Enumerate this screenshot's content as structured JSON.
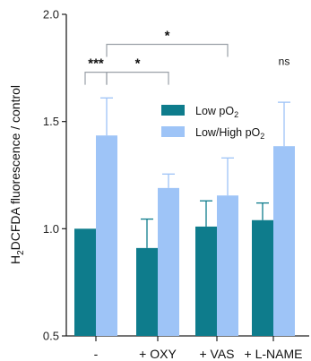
{
  "chart_data": {
    "type": "bar",
    "categories": [
      "-",
      "+ OXY",
      "+ VAS",
      "+ L-NAME"
    ],
    "series": [
      {
        "name": "Low pO",
        "name_sub": "2",
        "color": "#0e7c8c",
        "values": [
          1.0,
          0.91,
          1.01,
          1.04
        ],
        "errors": [
          0.0,
          0.135,
          0.12,
          0.08
        ]
      },
      {
        "name": "Low/High pO",
        "name_sub": "2",
        "color": "#9ec4f7",
        "values": [
          1.435,
          1.19,
          1.155,
          1.385
        ],
        "errors": [
          0.175,
          0.065,
          0.175,
          0.205
        ]
      }
    ],
    "ylabel": {
      "main": "H",
      "sub": "2",
      "rest": "DCFDA fluorescence / control"
    },
    "ylim": [
      0.5,
      2.0
    ],
    "yticks": [
      "0.5",
      "1.0",
      "1.5",
      "2.0"
    ],
    "ytick_values": [
      0.5,
      1.0,
      1.5,
      2.0
    ],
    "grid": false,
    "legend_position": "top-right",
    "annotations": {
      "brackets": [
        {
          "label": "***",
          "from_bar": "0-0",
          "to_bar": "0-1",
          "y": 1.73
        },
        {
          "label": "*",
          "from_bar": "0-1",
          "to_bar": "1-1",
          "y": 1.73
        },
        {
          "label": "*",
          "from_bar": "0-1",
          "to_bar": "2-1",
          "y": 1.86
        }
      ],
      "bar_labels": [
        {
          "label": "ns",
          "bar": "3-1",
          "y": 1.73
        }
      ]
    }
  }
}
